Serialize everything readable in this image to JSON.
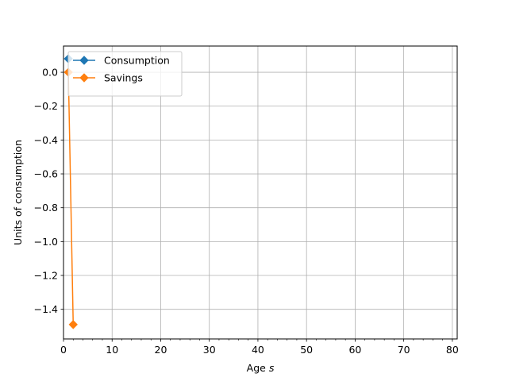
{
  "chart_data": {
    "type": "line",
    "title": "",
    "xlabel": "Age ",
    "xlabel_italic": "s",
    "ylabel": "Units of consumption",
    "xlim": [
      0,
      81
    ],
    "ylim": [
      -1.575,
      0.155
    ],
    "x_ticks": [
      0,
      10,
      20,
      30,
      40,
      50,
      60,
      70,
      80
    ],
    "x_tick_labels": [
      "0",
      "10",
      "20",
      "30",
      "40",
      "50",
      "60",
      "70",
      "80"
    ],
    "y_ticks": [
      0.0,
      -0.2,
      -0.4,
      -0.6,
      -0.8,
      -1.0,
      -1.2,
      -1.4
    ],
    "y_tick_labels": [
      "0.0",
      "−0.2",
      "−0.4",
      "−0.6",
      "−0.8",
      "−1.0",
      "−1.2",
      "−1.4"
    ],
    "x_minor_step": 2,
    "grid": true,
    "legend_position": "upper-left",
    "series": [
      {
        "name": "Consumption",
        "color": "#1f77b4",
        "marker": "diamond",
        "x": [
          1
        ],
        "y": [
          0.08
        ]
      },
      {
        "name": "Savings",
        "color": "#ff7f0e",
        "marker": "diamond",
        "x": [
          1,
          2
        ],
        "y": [
          0.0,
          -1.49
        ]
      }
    ]
  }
}
